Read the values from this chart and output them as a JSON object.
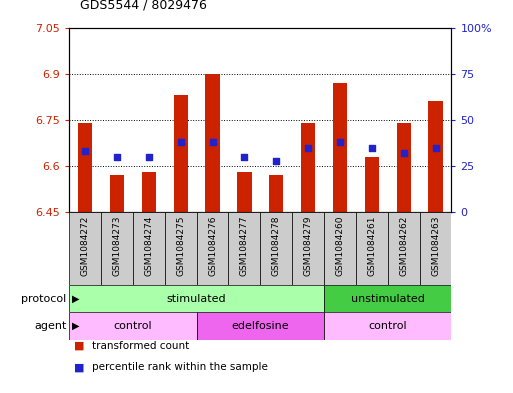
{
  "title": "GDS5544 / 8029476",
  "samples": [
    "GSM1084272",
    "GSM1084273",
    "GSM1084274",
    "GSM1084275",
    "GSM1084276",
    "GSM1084277",
    "GSM1084278",
    "GSM1084279",
    "GSM1084260",
    "GSM1084261",
    "GSM1084262",
    "GSM1084263"
  ],
  "bar_values": [
    6.74,
    6.57,
    6.58,
    6.83,
    6.9,
    6.58,
    6.57,
    6.74,
    6.87,
    6.63,
    6.74,
    6.81
  ],
  "bar_base": 6.45,
  "percentile_values": [
    33,
    30,
    30,
    38,
    38,
    30,
    28,
    35,
    38,
    35,
    32,
    35
  ],
  "ylim_left": [
    6.45,
    7.05
  ],
  "ylim_right": [
    0,
    100
  ],
  "yticks_left": [
    6.45,
    6.6,
    6.75,
    6.9,
    7.05
  ],
  "yticks_right": [
    0,
    25,
    50,
    75,
    100
  ],
  "yticklabels_left": [
    "6.45",
    "6.6",
    "6.75",
    "6.9",
    "7.05"
  ],
  "yticklabels_right": [
    "0",
    "25",
    "50",
    "75",
    "100%"
  ],
  "bar_color": "#cc2200",
  "dot_color": "#2222cc",
  "grid_color": "#000000",
  "bg_color": "#ffffff",
  "plot_bg": "#ffffff",
  "grid_yticks": [
    6.6,
    6.75,
    6.9
  ],
  "protocol_groups": [
    {
      "label": "stimulated",
      "start": 0,
      "end": 8,
      "color": "#aaffaa"
    },
    {
      "label": "unstimulated",
      "start": 8,
      "end": 12,
      "color": "#44cc44"
    }
  ],
  "agent_groups": [
    {
      "label": "control",
      "start": 0,
      "end": 4,
      "color": "#ffbbff"
    },
    {
      "label": "edelfosine",
      "start": 4,
      "end": 8,
      "color": "#ee66ee"
    },
    {
      "label": "control",
      "start": 8,
      "end": 12,
      "color": "#ffbbff"
    }
  ],
  "xtick_bg": "#cccccc",
  "legend_items": [
    {
      "label": "transformed count",
      "color": "#cc2200"
    },
    {
      "label": "percentile rank within the sample",
      "color": "#2222cc"
    }
  ]
}
